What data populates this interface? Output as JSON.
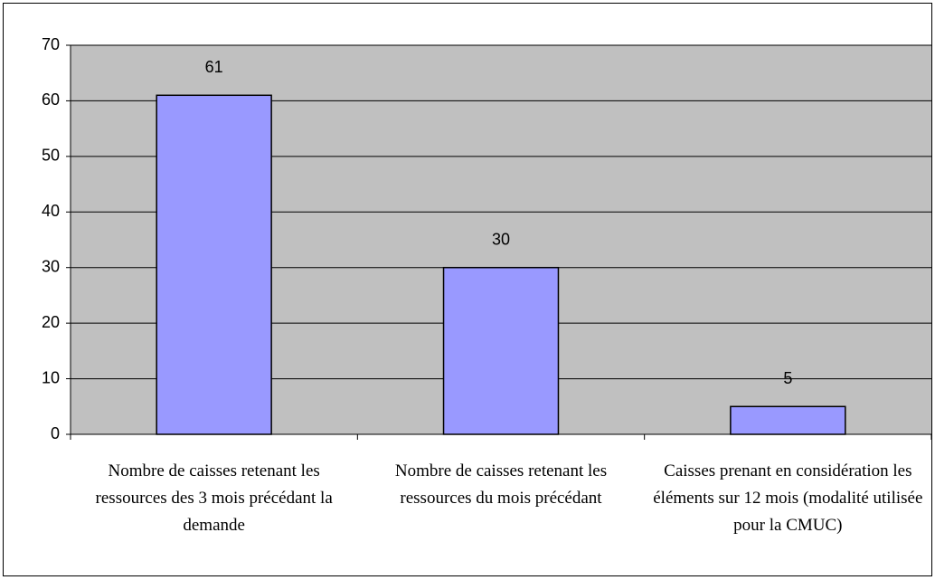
{
  "chart_data": {
    "type": "bar",
    "categories": [
      "Nombre de caisses retenant les ressources des 3 mois précédant la demande",
      "Nombre de caisses retenant les ressources du mois précédant",
      "Caisses prenant en considération les éléments sur 12 mois (modalité utilisée pour la CMUC)"
    ],
    "values": [
      61,
      30,
      5
    ],
    "color": "#9999ff",
    "ylim": [
      0,
      70
    ],
    "yticks": [
      0,
      10,
      20,
      30,
      40,
      50,
      60,
      70
    ],
    "grid": true
  }
}
